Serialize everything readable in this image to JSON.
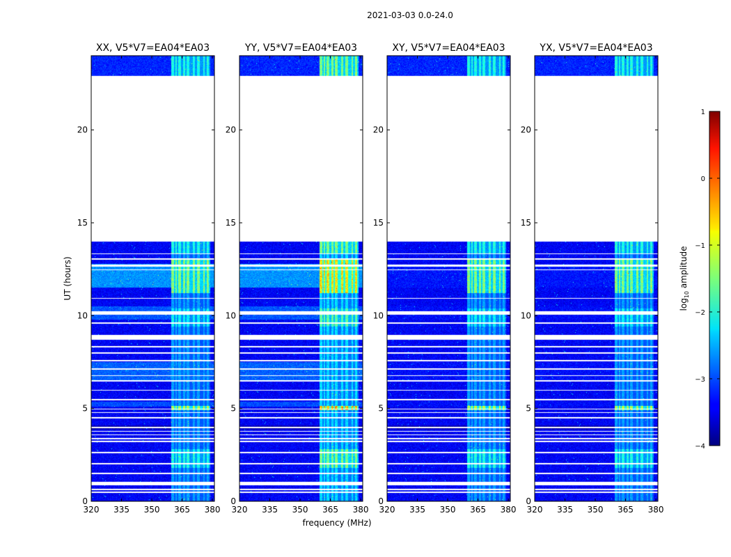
{
  "chart_data": {
    "type": "heatmap",
    "title": "2021-03-03 0.0-24.0",
    "xlabel": "frequency (MHz)",
    "ylabel": "UT (hours)",
    "xlim": [
      320,
      381
    ],
    "ylim": [
      0,
      24
    ],
    "xticks": [
      320,
      335,
      350,
      365,
      380
    ],
    "yticks": [
      0,
      5,
      10,
      15,
      20
    ],
    "panels": [
      {
        "title": "XX, V5*V7=EA04*EA03",
        "rfi_peak": 1.0,
        "sky_glow": 1.0
      },
      {
        "title": "YY, V5*V7=EA04*EA03",
        "rfi_peak": 1.35,
        "sky_glow": 1.0
      },
      {
        "title": "XY, V5*V7=EA04*EA03",
        "rfi_peak": 1.0,
        "sky_glow": 0.15
      },
      {
        "title": "YX, V5*V7=EA04*EA03",
        "rfi_peak": 1.0,
        "sky_glow": 0.15
      }
    ],
    "rfi_band_mhz": [
      359.5,
      379
    ],
    "missing_data_hours": [
      [
        0.45,
        0.52
      ],
      [
        0.6,
        0.67
      ],
      [
        0.85,
        1.05
      ],
      [
        1.45,
        1.52
      ],
      [
        2.0,
        2.05
      ],
      [
        2.6,
        2.65
      ],
      [
        3.2,
        3.25
      ],
      [
        3.35,
        3.4
      ],
      [
        3.55,
        3.6
      ],
      [
        3.75,
        3.8
      ],
      [
        3.95,
        4.02
      ],
      [
        4.45,
        4.55
      ],
      [
        4.75,
        4.8
      ],
      [
        4.95,
        5.0
      ],
      [
        5.45,
        5.52
      ],
      [
        5.95,
        6.0
      ],
      [
        6.45,
        6.52
      ],
      [
        6.75,
        6.8
      ],
      [
        7.1,
        7.15
      ],
      [
        7.55,
        7.6
      ],
      [
        7.95,
        8.02
      ],
      [
        8.3,
        8.35
      ],
      [
        8.7,
        8.95
      ],
      [
        9.55,
        9.65
      ],
      [
        10.05,
        10.25
      ],
      [
        10.9,
        10.95
      ],
      [
        12.45,
        12.5
      ],
      [
        12.65,
        12.75
      ],
      [
        13.0,
        13.1
      ],
      [
        13.3,
        13.35
      ],
      [
        14.0,
        22.9
      ]
    ],
    "colorbar": {
      "label": "log10 amplitude",
      "label_main": "log",
      "label_sub": "10",
      "label_rest": " amplitude",
      "range": [
        -4,
        1
      ],
      "ticks": [
        "1",
        "0",
        "−1",
        "−2",
        "−3",
        "−4"
      ],
      "colormap": "jet"
    }
  }
}
